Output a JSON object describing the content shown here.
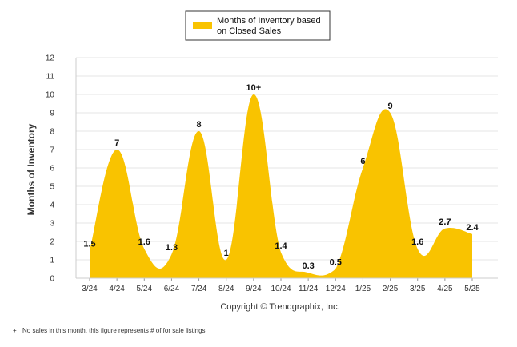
{
  "chart_data": {
    "type": "area",
    "legend": {
      "label_line1": "Months of Inventory based",
      "label_line2": "on Closed Sales",
      "position": "top-center"
    },
    "ylabel": "Months of Inventory",
    "ylim": [
      0,
      12
    ],
    "yticks": [
      "0",
      "1",
      "2",
      "3",
      "4",
      "5",
      "6",
      "7",
      "8",
      "9",
      "10",
      "11",
      "12"
    ],
    "categories": [
      "3/24",
      "4/24",
      "5/24",
      "6/24",
      "7/24",
      "8/24",
      "9/24",
      "10/24",
      "11/24",
      "12/24",
      "1/25",
      "2/25",
      "3/25",
      "4/25",
      "5/25"
    ],
    "values": [
      1.5,
      7,
      1.6,
      1.3,
      8,
      1,
      10,
      1.4,
      0.3,
      0.5,
      6,
      9,
      1.6,
      2.7,
      2.4
    ],
    "data_labels": [
      "1.5",
      "7",
      "1.6",
      "1.3",
      "8",
      "1",
      "10+",
      "1.4",
      "0.3",
      "0.5",
      "6",
      "9",
      "1.6",
      "2.7",
      "2.4"
    ],
    "grid": true,
    "fill_color": "#F9C300"
  },
  "copyright": "Copyright © Trendgraphix, Inc.",
  "footnote_marker": "+",
  "footnote": "No sales in this month, this figure represents # of for sale listings"
}
